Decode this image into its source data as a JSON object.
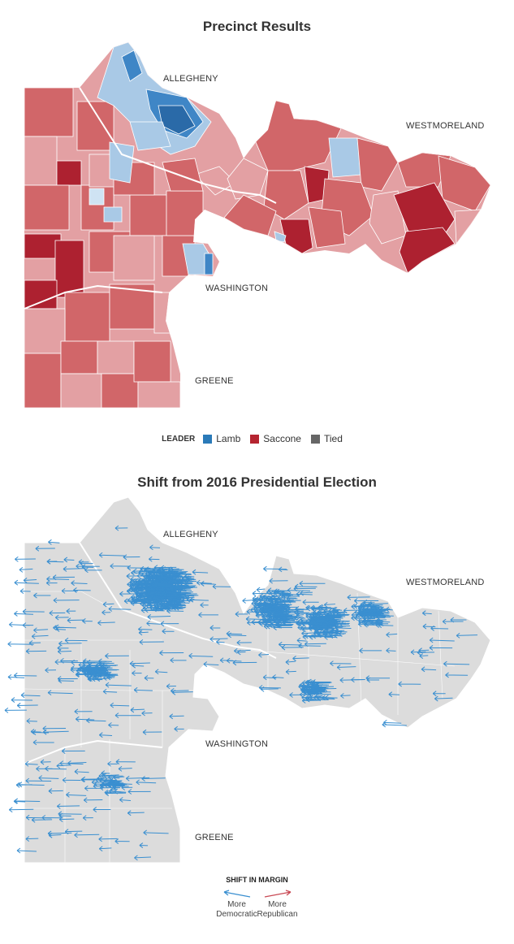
{
  "map1": {
    "title": "Precinct Results",
    "labels": {
      "allegheny": "ALLEGHENY",
      "westmoreland": "WESTMORELAND",
      "washington": "WASHINGTON",
      "greene": "GREENE"
    },
    "legend": {
      "label": "LEADER",
      "items": [
        {
          "name": "Lamb",
          "color": "#2a7ab8"
        },
        {
          "name": "Saccone",
          "color": "#b52430"
        },
        {
          "name": "Tied",
          "color": "#666666"
        }
      ]
    }
  },
  "map2": {
    "title": "Shift from 2016 Presidential Election",
    "labels": {
      "allegheny": "ALLEGHENY",
      "westmoreland": "WESTMORELAND",
      "washington": "WASHINGTON",
      "greene": "GREENE"
    },
    "legend": {
      "label": "SHIFT IN MARGIN",
      "items": [
        {
          "line1": "More",
          "line2": "Democratic",
          "color": "#3a8fd0"
        },
        {
          "line1": "More",
          "line2": "Republican",
          "color": "#c94a55"
        }
      ]
    }
  },
  "colors": {
    "dem_dark": "#3f86c6",
    "dem_light": "#a9c9e6",
    "rep_light": "#e3a0a3",
    "rep_mid": "#d16669",
    "rep_dark": "#ad2130",
    "shift_bg": "#dcdcdc",
    "shift_dem": "#3a8fd0"
  }
}
